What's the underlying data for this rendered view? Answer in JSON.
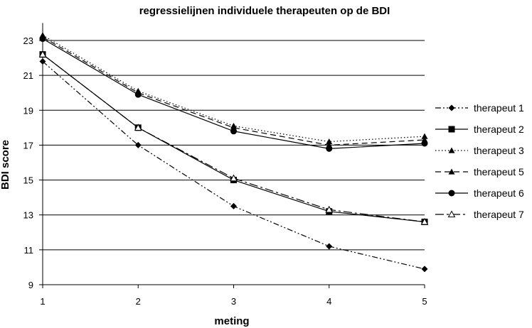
{
  "chart_data": {
    "type": "line",
    "title": "regressielijnen individuele therapeuten op de BDI",
    "xlabel": "meting",
    "ylabel": "BDI score",
    "x": [
      1,
      2,
      3,
      4,
      5
    ],
    "xlim": [
      1,
      5
    ],
    "ylim": [
      9,
      24
    ],
    "yticks": [
      9,
      11,
      13,
      15,
      17,
      19,
      21,
      23
    ],
    "xticks": [
      1,
      2,
      3,
      4,
      5
    ],
    "grid": "horizontal",
    "legend_position": "right",
    "series": [
      {
        "name": "therapeut 1",
        "marker": "diamond",
        "line": "dash-dot-dot",
        "values": [
          21.8,
          17.0,
          13.5,
          11.2,
          9.9
        ]
      },
      {
        "name": "therapeut 2",
        "marker": "square",
        "line": "solid",
        "values": [
          22.2,
          18.0,
          15.0,
          13.2,
          12.6
        ]
      },
      {
        "name": "therapeut 3",
        "marker": "triangle",
        "line": "dotted",
        "values": [
          23.3,
          20.1,
          18.1,
          17.2,
          17.5
        ]
      },
      {
        "name": "therapeut 5",
        "marker": "triangle",
        "line": "dashed",
        "values": [
          23.2,
          20.0,
          18.0,
          17.0,
          17.3
        ]
      },
      {
        "name": "therapeut 6",
        "marker": "circle",
        "line": "solid",
        "values": [
          23.1,
          19.9,
          17.8,
          16.8,
          17.1
        ]
      },
      {
        "name": "therapeut 7",
        "marker": "open-triangle",
        "line": "long-dash-dot",
        "values": [
          22.2,
          18.0,
          15.1,
          13.3,
          12.6
        ]
      }
    ]
  }
}
